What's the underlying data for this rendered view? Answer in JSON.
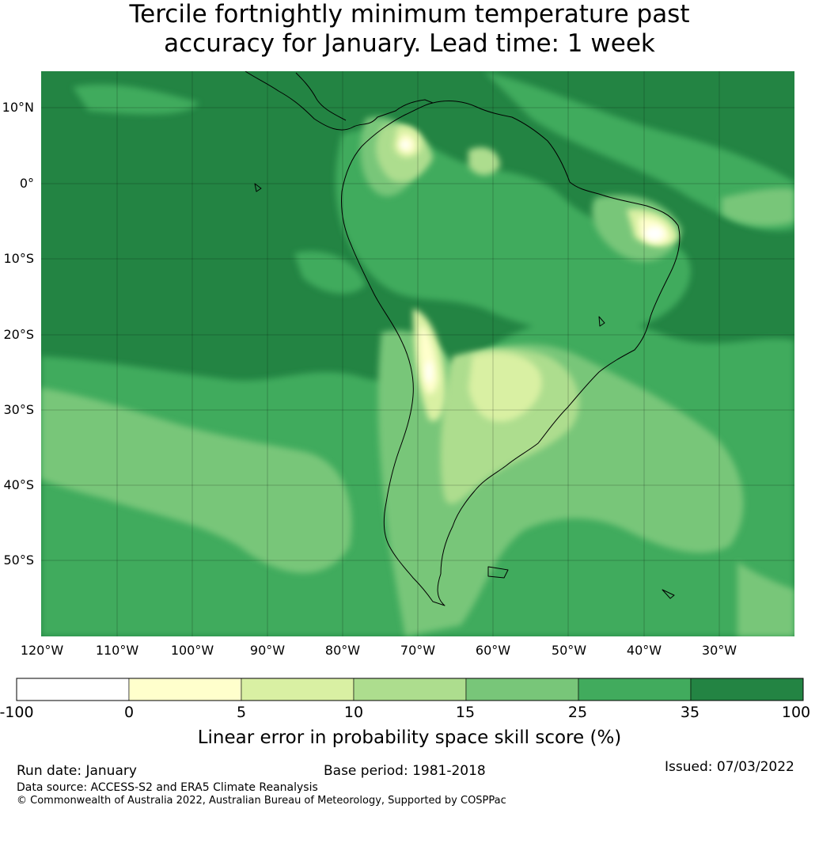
{
  "title": {
    "line1": "Tercile fortnightly minimum temperature past",
    "line2": "accuracy for January. Lead time: 1 week"
  },
  "map": {
    "lat_labels": [
      "10°N",
      "0°",
      "10°S",
      "20°S",
      "30°S",
      "40°S",
      "50°S"
    ],
    "lon_labels": [
      "120°W",
      "110°W",
      "100°W",
      "90°W",
      "80°W",
      "70°W",
      "60°W",
      "50°W",
      "40°W",
      "30°W"
    ],
    "colors": {
      "c0": "#ffffff",
      "c1": "#ffffcc",
      "c2": "#d9f0a3",
      "c3": "#addd8e",
      "c4": "#78c679",
      "c5": "#41ab5d",
      "c6": "#238443",
      "coast": "#000000"
    }
  },
  "colorbar": {
    "ticks": [
      "-100",
      "0",
      "5",
      "10",
      "15",
      "25",
      "35",
      "100"
    ],
    "colors": [
      "#ffffff",
      "#ffffcc",
      "#d9f0a3",
      "#addd8e",
      "#78c679",
      "#41ab5d",
      "#238443"
    ],
    "label": "Linear error in probability space skill score (%)"
  },
  "footer": {
    "run_date": "Run date: January",
    "base_period": "Base period: 1981-2018",
    "issued": "Issued: 07/03/2022",
    "data_source": "Data source: ACCESS-S2 and ERA5 Climate Reanalysis",
    "copyright": "© Commonwealth of Australia 2022, Australian Bureau of Meteorology, Supported by COSPPac"
  }
}
